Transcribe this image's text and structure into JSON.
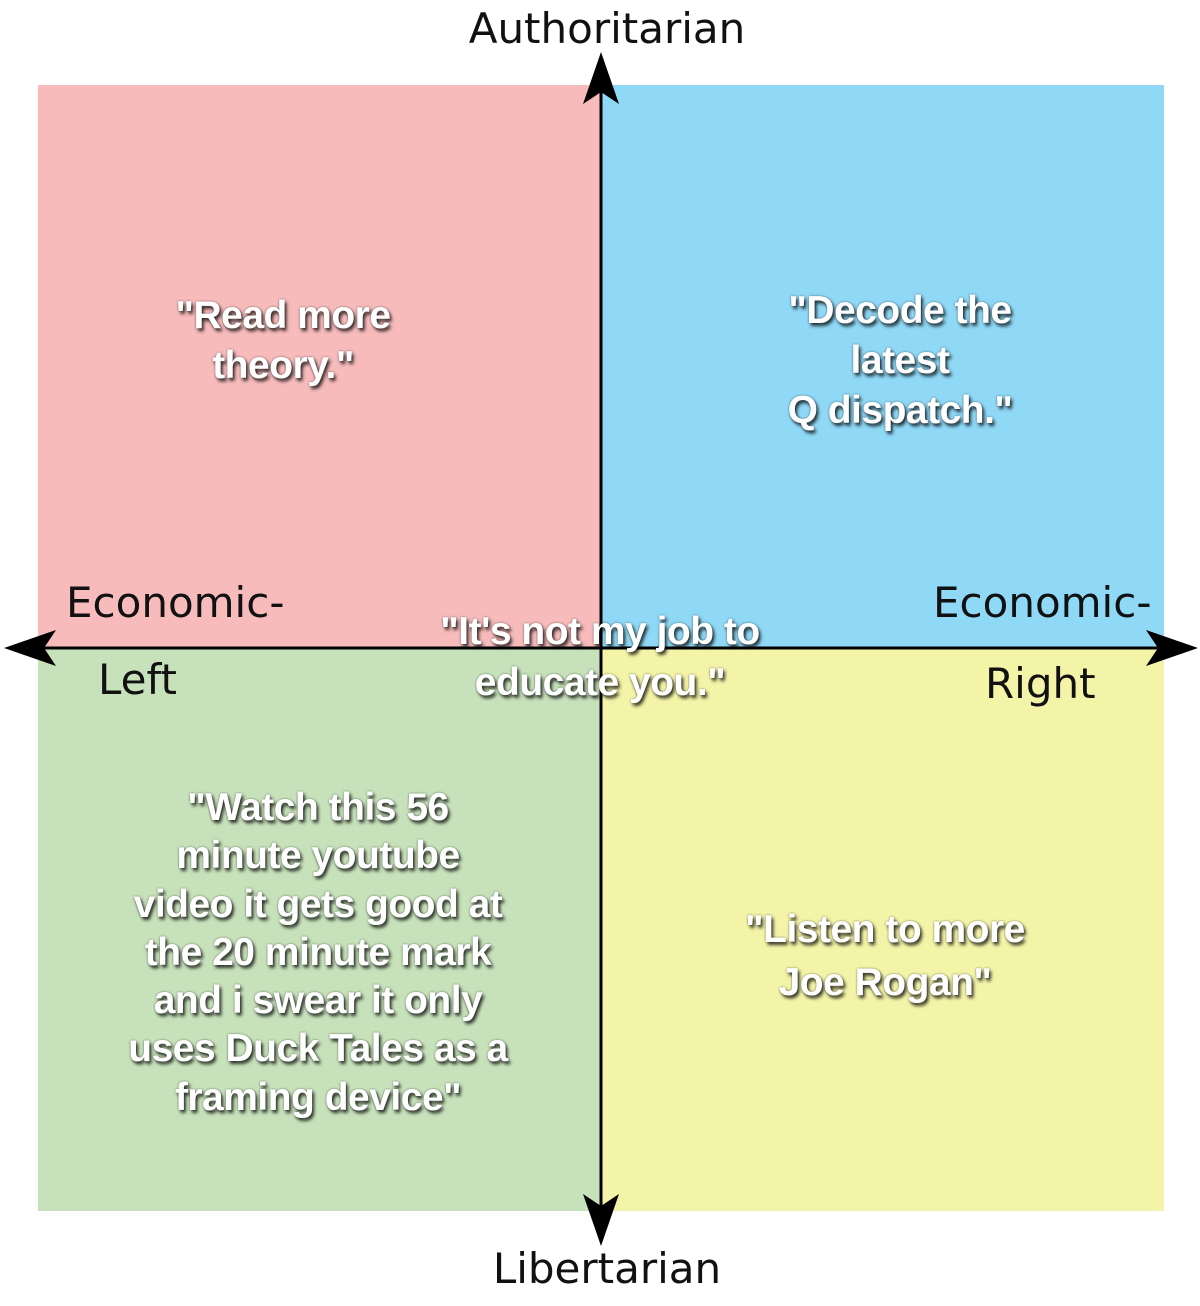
{
  "axes": {
    "top": "Authoritarian",
    "bottom": "Libertarian",
    "left_line1": "Economic-",
    "left_line2": "Left",
    "right_line1": "Economic-",
    "right_line2": "Right"
  },
  "quadrants": {
    "top_left": {
      "color": "#f7bbbb",
      "text": "\"Read more\ntheory.\""
    },
    "top_right": {
      "color": "#8fd8f6",
      "text": "\"Decode the latest\nQ dispatch.\""
    },
    "bottom_left": {
      "color": "#c7e2bb",
      "text": "\"Watch this 56\nminute youtube\nvideo it gets good at\nthe 20 minute mark\nand i swear it only\nuses Duck Tales as a\nframing device\""
    },
    "bottom_right": {
      "color": "#f4f4a8",
      "text": "\"Listen to more\nJoe Rogan\""
    }
  },
  "center": {
    "text": "\"It's not my job to\neducate you.\""
  }
}
